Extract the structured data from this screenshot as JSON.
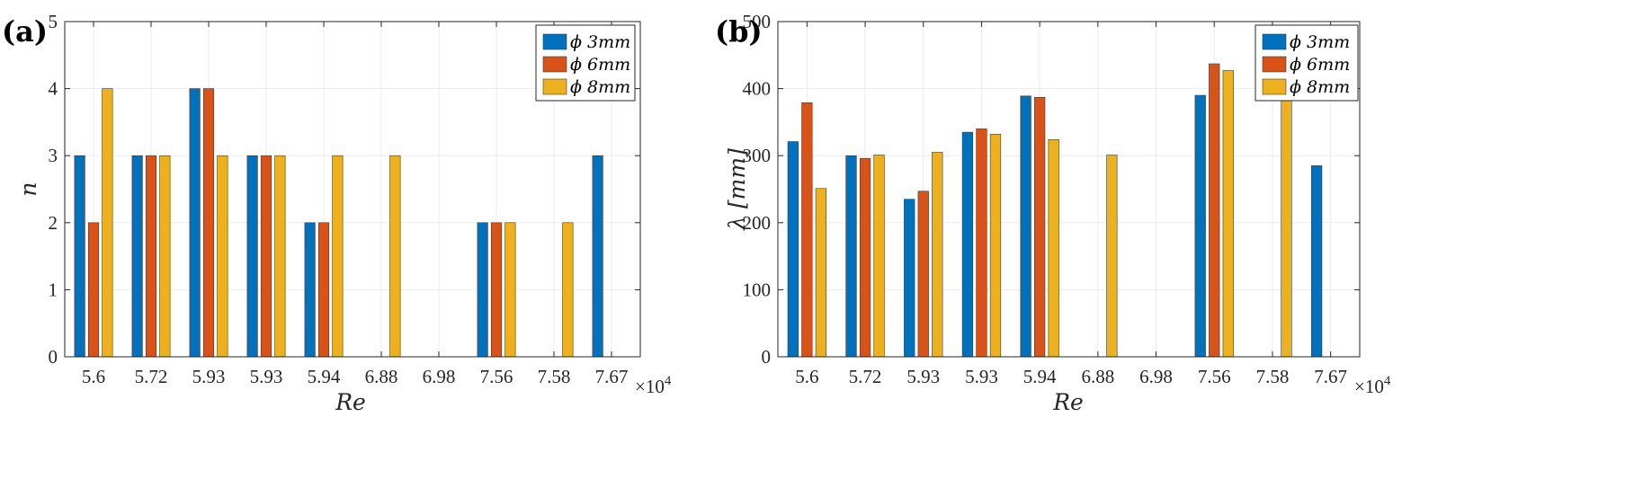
{
  "chart_data": [
    {
      "panel_label": "(a)",
      "type": "bar",
      "categories": [
        "5.6",
        "5.72",
        "5.93",
        "5.93",
        "5.94",
        "6.88",
        "6.98",
        "7.56",
        "7.58",
        "7.67"
      ],
      "x_exponent": "×10",
      "x_exponent_power": "4",
      "xlabel": "Re",
      "ylabel": "n",
      "ylim": [
        0,
        5
      ],
      "yticks": [
        "0",
        "1",
        "2",
        "3",
        "4",
        "5"
      ],
      "grid": true,
      "legend_position": "top-right",
      "series": [
        {
          "name": "ϕ 3mm",
          "color": "#0072BD",
          "values": [
            3,
            3,
            4,
            3,
            2,
            0,
            0,
            2,
            0,
            3
          ]
        },
        {
          "name": "ϕ 6mm",
          "color": "#D95319",
          "values": [
            2,
            3,
            4,
            3,
            2,
            0,
            0,
            2,
            0,
            0
          ]
        },
        {
          "name": "ϕ 8mm",
          "color": "#EDB120",
          "values": [
            4,
            3,
            3,
            3,
            3,
            3,
            0,
            2,
            2,
            0
          ]
        }
      ]
    },
    {
      "panel_label": "(b)",
      "type": "bar",
      "categories": [
        "5.6",
        "5.72",
        "5.93",
        "5.93",
        "5.94",
        "6.88",
        "6.98",
        "7.56",
        "7.58",
        "7.67"
      ],
      "x_exponent": "×10",
      "x_exponent_power": "4",
      "xlabel": "Re",
      "ylabel": "λ [mm]",
      "ylim": [
        0,
        500
      ],
      "yticks": [
        "0",
        "100",
        "200",
        "300",
        "400",
        "500"
      ],
      "grid": true,
      "legend_position": "top-right",
      "series": [
        {
          "name": "ϕ 3mm",
          "color": "#0072BD",
          "values": [
            321,
            300,
            235,
            335,
            389,
            0,
            0,
            390,
            0,
            285
          ]
        },
        {
          "name": "ϕ 6mm",
          "color": "#D95319",
          "values": [
            379,
            296,
            247,
            340,
            387,
            0,
            0,
            437,
            0,
            0
          ]
        },
        {
          "name": "ϕ 8mm",
          "color": "#EDB120",
          "values": [
            251,
            301,
            305,
            332,
            324,
            301,
            0,
            427,
            395,
            0
          ]
        }
      ]
    }
  ]
}
